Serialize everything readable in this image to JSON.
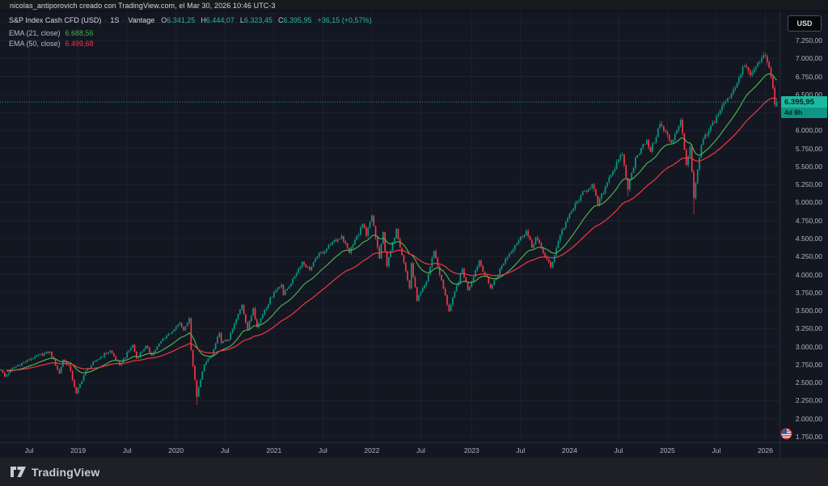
{
  "header": {
    "attribution": "nicolas_antiporovich creado con TradingView.com, el Mar 30, 2026 10:46 UTC-3"
  },
  "legend": {
    "symbol_title": "S&P Index Cash CFD (USD)",
    "separator": "·",
    "interval": "1S",
    "broker": "Vantage",
    "ohlc": [
      {
        "label": "O",
        "value": "6.341,25"
      },
      {
        "label": "H",
        "value": "6.444,07"
      },
      {
        "label": "L",
        "value": "6.323,45"
      },
      {
        "label": "C",
        "value": "6.395,95"
      }
    ],
    "change": "+36,15 (+0,57%)",
    "indicators": [
      {
        "name": "EMA (21, close)",
        "value": "6.688,56",
        "color": "#4caf50"
      },
      {
        "name": "EMA (50, close)",
        "value": "6.499,68",
        "color": "#f23645"
      }
    ]
  },
  "price_scale": {
    "currency_button": "USD",
    "labels": [
      {
        "value": 7250,
        "label": "7.250,00"
      },
      {
        "value": 7000,
        "label": "7.000,00"
      },
      {
        "value": 6750,
        "label": "6.750,00"
      },
      {
        "value": 6500,
        "label": "6.500,00"
      },
      {
        "value": 6250,
        "label": "6.250,00"
      },
      {
        "value": 6000,
        "label": "6.000,00"
      },
      {
        "value": 5750,
        "label": "5.750,00"
      },
      {
        "value": 5500,
        "label": "5.500,00"
      },
      {
        "value": 5250,
        "label": "5.250,00"
      },
      {
        "value": 5000,
        "label": "5.000,00"
      },
      {
        "value": 4750,
        "label": "4.750,00"
      },
      {
        "value": 4500,
        "label": "4.500,00"
      },
      {
        "value": 4250,
        "label": "4.250,00"
      },
      {
        "value": 4000,
        "label": "4.000,00"
      },
      {
        "value": 3750,
        "label": "3.750,00"
      },
      {
        "value": 3500,
        "label": "3.500,00"
      },
      {
        "value": 3250,
        "label": "3.250,00"
      },
      {
        "value": 3000,
        "label": "3.000,00"
      },
      {
        "value": 2750,
        "label": "2.750,00"
      },
      {
        "value": 2500,
        "label": "2.500,00"
      },
      {
        "value": 2250,
        "label": "2.250,00"
      },
      {
        "value": 2000,
        "label": "2.000,00"
      },
      {
        "value": 1750,
        "label": "1.750,00"
      }
    ],
    "price_badge": {
      "price": "6.395,95",
      "countdown": "4d 8h"
    },
    "flag_icon": "us-flag-icon"
  },
  "time_scale": {
    "ticks": [
      {
        "label": "Jul",
        "week": 15
      },
      {
        "label": "2019",
        "week": 41
      },
      {
        "label": "Jul",
        "week": 67
      },
      {
        "label": "2020",
        "week": 93
      },
      {
        "label": "Jul",
        "week": 119
      },
      {
        "label": "2021",
        "week": 145
      },
      {
        "label": "Jul",
        "week": 171
      },
      {
        "label": "2022",
        "week": 197
      },
      {
        "label": "Jul",
        "week": 223
      },
      {
        "label": "2023",
        "week": 250
      },
      {
        "label": "Jul",
        "week": 276
      },
      {
        "label": "2024",
        "week": 302
      },
      {
        "label": "Jul",
        "week": 328
      },
      {
        "label": "2025",
        "week": 354
      },
      {
        "label": "Jul",
        "week": 380
      },
      {
        "label": "2026",
        "week": 406
      }
    ]
  },
  "footer": {
    "brand": "TradingView"
  },
  "chart_data": {
    "type": "candlestick",
    "title": "S&P Index Cash CFD (USD) · 1S · Vantage",
    "interval": "weekly",
    "ylim": [
      1750,
      7250
    ],
    "y_tick_step": 250,
    "x_range_years": [
      "2018",
      "2026"
    ],
    "weeks_total": 414,
    "grid": true,
    "current_price": 6395.95,
    "change_value": 36.15,
    "change_percent": 0.57,
    "last_candle": {
      "open": 6341.25,
      "high": 6444.07,
      "low": 6323.45,
      "close": 6395.95
    },
    "colors": {
      "up": "#089981",
      "down": "#f23645",
      "price_line": "#1cb9a2",
      "grid": "#1d2230"
    },
    "emas": [
      {
        "period": 21,
        "color": "#4caf50",
        "last_value": 6688.56
      },
      {
        "period": 50,
        "color": "#f23645",
        "last_value": 6499.68
      }
    ],
    "anchors": [
      [
        0,
        2680
      ],
      [
        2,
        2585
      ],
      [
        6,
        2700
      ],
      [
        12,
        2780
      ],
      [
        18,
        2860
      ],
      [
        26,
        2930
      ],
      [
        31,
        2630
      ],
      [
        33,
        2815
      ],
      [
        36,
        2740
      ],
      [
        40,
        2351
      ],
      [
        45,
        2665
      ],
      [
        50,
        2800
      ],
      [
        58,
        2946
      ],
      [
        63,
        2744
      ],
      [
        70,
        3025
      ],
      [
        72,
        2840
      ],
      [
        77,
        3010
      ],
      [
        80,
        2880
      ],
      [
        86,
        3110
      ],
      [
        92,
        3240
      ],
      [
        95,
        3329
      ],
      [
        97,
        3225
      ],
      [
        100,
        3393
      ],
      [
        101,
        2954
      ],
      [
        104,
        2305
      ],
      [
        106,
        2541
      ],
      [
        108,
        2750
      ],
      [
        112,
        2880
      ],
      [
        116,
        3190
      ],
      [
        117,
        3050
      ],
      [
        121,
        3100
      ],
      [
        128,
        3580
      ],
      [
        131,
        3237
      ],
      [
        134,
        3534
      ],
      [
        136,
        3270
      ],
      [
        140,
        3510
      ],
      [
        145,
        3756
      ],
      [
        149,
        3860
      ],
      [
        150,
        3714
      ],
      [
        155,
        3940
      ],
      [
        160,
        4180
      ],
      [
        164,
        4060
      ],
      [
        168,
        4250
      ],
      [
        175,
        4412
      ],
      [
        181,
        4537
      ],
      [
        185,
        4300
      ],
      [
        192,
        4698
      ],
      [
        194,
        4538
      ],
      [
        197,
        4818
      ],
      [
        201,
        4222
      ],
      [
        203,
        4590
      ],
      [
        205,
        4115
      ],
      [
        210,
        4637
      ],
      [
        217,
        3810
      ],
      [
        218,
        4158
      ],
      [
        221,
        3637
      ],
      [
        226,
        3900
      ],
      [
        230,
        4325
      ],
      [
        238,
        3491
      ],
      [
        245,
        4080
      ],
      [
        248,
        3783
      ],
      [
        254,
        4195
      ],
      [
        260,
        3808
      ],
      [
        268,
        4220
      ],
      [
        273,
        4410
      ],
      [
        279,
        4607
      ],
      [
        282,
        4370
      ],
      [
        284,
        4516
      ],
      [
        292,
        4103
      ],
      [
        297,
        4550
      ],
      [
        301,
        4783
      ],
      [
        308,
        5100
      ],
      [
        314,
        5254
      ],
      [
        317,
        4967
      ],
      [
        323,
        5350
      ],
      [
        330,
        5670
      ],
      [
        333,
        5180
      ],
      [
        337,
        5620
      ],
      [
        343,
        5865
      ],
      [
        345,
        5705
      ],
      [
        350,
        6090
      ],
      [
        356,
        5830
      ],
      [
        361,
        6147
      ],
      [
        364,
        5521
      ],
      [
        366,
        5777
      ],
      [
        368,
        5060
      ],
      [
        372,
        5800
      ],
      [
        376,
        6000
      ],
      [
        382,
        6280
      ],
      [
        386,
        6450
      ],
      [
        391,
        6660
      ],
      [
        395,
        6900
      ],
      [
        398,
        6770
      ],
      [
        400,
        6850
      ],
      [
        402,
        6940
      ],
      [
        404,
        7000
      ],
      [
        406,
        7030
      ],
      [
        407,
        6950
      ],
      [
        408,
        6870
      ],
      [
        409,
        6740
      ],
      [
        410,
        6590
      ],
      [
        411,
        6359.8
      ],
      [
        412,
        6395.95
      ]
    ],
    "wicks": [
      {
        "week": 40,
        "low": 2340
      },
      {
        "week": 104,
        "low": 2191
      },
      {
        "week": 333,
        "low": 5090
      },
      {
        "week": 368,
        "low": 4835
      },
      {
        "week": 411,
        "low": 6320
      }
    ]
  }
}
